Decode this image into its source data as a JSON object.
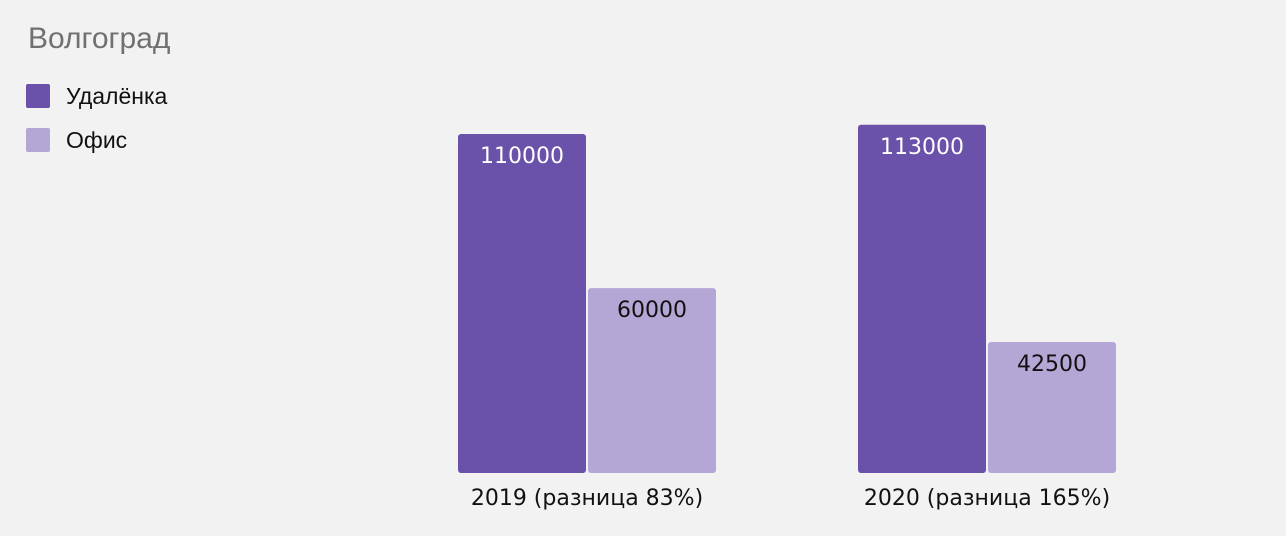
{
  "chart_data": {
    "type": "bar",
    "title": "Волгоград",
    "categories": [
      "2019 (разница 83%)",
      "2020 (разница 165%)"
    ],
    "series": [
      {
        "name": "Удалёнка",
        "values": [
          110000,
          113000
        ],
        "color": "#6a51a9"
      },
      {
        "name": "Офис",
        "values": [
          60000,
          42500
        ],
        "color": "#b4a7d6"
      }
    ],
    "ylim": [
      0,
      120000
    ],
    "grid": false,
    "legend": "top-left",
    "data_labels": true
  }
}
